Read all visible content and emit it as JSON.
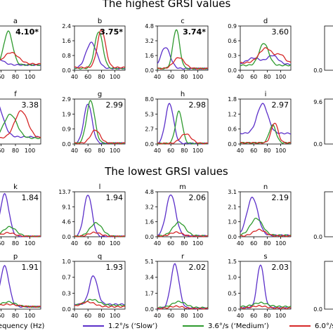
{
  "colors": {
    "slow": "#5b2fc9",
    "medium": "#2e9a2e",
    "fast": "#d62828"
  },
  "headings": {
    "top": "The highest GRSI values",
    "bottom": "The lowest GRSI values"
  },
  "xlabel": "Frequency (Hz)",
  "legend": [
    {
      "label": "1.2°/s (‘Slow’)",
      "color": "#5b2fc9"
    },
    {
      "label": "3.6°/s (‘Medium’)",
      "color": "#2e9a2e"
    },
    {
      "label": "6.0°/s",
      "color": "#d62828"
    }
  ],
  "chart_data": [
    {
      "id": "a",
      "type": "line",
      "grsi": "4.10*",
      "bold": true,
      "yticks": [],
      "xticks": [
        "60",
        "80",
        "100"
      ],
      "xlim": [
        45,
        115
      ],
      "ylim": [
        0,
        2.5
      ],
      "peaks": {
        "slow": [
          [
            50,
            0.8,
            10
          ]
        ],
        "medium": [
          [
            70,
            2.2,
            6
          ]
        ],
        "fast": [
          [
            74,
            1.0,
            10
          ]
        ]
      },
      "base": [
        0.3,
        0.3,
        0.35
      ]
    },
    {
      "id": "b",
      "type": "line",
      "grsi": "3.75*",
      "bold": true,
      "yticks": [
        "0.0",
        "0.8",
        "1.6",
        "2.4"
      ],
      "xticks": [
        "40",
        "60",
        "80",
        "100"
      ],
      "xlim": [
        40,
        115
      ],
      "ylim": [
        0,
        2.4
      ],
      "peaks": {
        "slow": [
          [
            65,
            1.5,
            8
          ]
        ],
        "medium": [
          [
            76,
            2.1,
            6
          ]
        ],
        "fast": [
          [
            80,
            2.2,
            6
          ]
        ]
      },
      "base": [
        0.1,
        0.1,
        0.15
      ]
    },
    {
      "id": "c",
      "type": "line",
      "grsi": "3.74*",
      "bold": true,
      "yticks": [
        "0.0",
        "1.6",
        "3.2",
        "4.8"
      ],
      "xticks": [
        "40",
        "60",
        "80",
        "100"
      ],
      "xlim": [
        40,
        115
      ],
      "ylim": [
        0,
        5.2
      ],
      "peaks": {
        "slow": [
          [
            52,
            2.7,
            7
          ]
        ],
        "medium": [
          [
            68,
            4.8,
            5
          ]
        ],
        "fast": [
          [
            72,
            1.5,
            8
          ]
        ]
      },
      "base": [
        0.2,
        0.2,
        0.2
      ]
    },
    {
      "id": "d",
      "type": "line",
      "grsi": "3.60",
      "bold": false,
      "yticks": [
        "0.0",
        "0.3",
        "0.6",
        "0.9"
      ],
      "xticks": [
        "40",
        "60",
        "80",
        "100"
      ],
      "xlim": [
        40,
        115
      ],
      "ylim": [
        0,
        0.9
      ],
      "peaks": {
        "slow": [
          [
            60,
            0.25,
            10
          ],
          [
            88,
            0.3,
            8
          ]
        ],
        "medium": [
          [
            75,
            0.55,
            7
          ]
        ],
        "fast": [
          [
            78,
            0.45,
            10
          ],
          [
            100,
            0.3,
            6
          ]
        ]
      },
      "base": [
        0.12,
        0.1,
        0.15
      ]
    },
    {
      "id": "f",
      "type": "line",
      "grsi": "3.38",
      "bold": false,
      "yticks": [],
      "xticks": [
        "60",
        "80",
        "100"
      ],
      "xlim": [
        45,
        115
      ],
      "ylim": [
        0,
        3.8
      ],
      "peaks": {
        "slow": [
          [
            53,
            3.6,
            9
          ]
        ],
        "medium": [
          [
            73,
            2.5,
            9
          ]
        ],
        "fast": [
          [
            88,
            2.8,
            9
          ]
        ]
      },
      "base": [
        0.6,
        0.5,
        0.5
      ]
    },
    {
      "id": "g",
      "type": "line",
      "grsi": "2.99",
      "bold": false,
      "yticks": [
        "0.0",
        "0.9",
        "1.9",
        "2.9"
      ],
      "xticks": [
        "40",
        "60",
        "80",
        "100"
      ],
      "xlim": [
        40,
        115
      ],
      "ylim": [
        0,
        2.9
      ],
      "peaks": {
        "slow": [
          [
            60,
            2.6,
            6
          ]
        ],
        "medium": [
          [
            64,
            2.8,
            6
          ]
        ],
        "fast": [
          [
            71,
            0.9,
            7
          ]
        ]
      },
      "base": [
        0.05,
        0.05,
        0.05
      ]
    },
    {
      "id": "h",
      "type": "line",
      "grsi": "2.98",
      "bold": false,
      "yticks": [
        "0.0",
        "2.7",
        "5.3",
        "8.0"
      ],
      "xticks": [
        "40",
        "60",
        "80",
        "100"
      ],
      "xlim": [
        40,
        115
      ],
      "ylim": [
        0,
        8.0
      ],
      "peaks": {
        "slow": [
          [
            58,
            7.2,
            6
          ]
        ],
        "medium": [
          [
            72,
            5.8,
            5
          ]
        ],
        "fast": [
          [
            82,
            1.8,
            8
          ]
        ]
      },
      "base": [
        0.1,
        0.1,
        0.1
      ]
    },
    {
      "id": "i",
      "type": "line",
      "grsi": "2.97",
      "bold": false,
      "yticks": [
        "0.0",
        "0.6",
        "1.2",
        "1.8"
      ],
      "xticks": [
        "40",
        "60",
        "80",
        "100"
      ],
      "xlim": [
        40,
        115
      ],
      "ylim": [
        0,
        1.9
      ],
      "peaks": {
        "slow": [
          [
            73,
            1.7,
            8
          ]
        ],
        "medium": [
          [
            88,
            0.8,
            5
          ]
        ],
        "fast": [
          [
            91,
            0.9,
            5
          ]
        ]
      },
      "base": [
        0.45,
        0.05,
        0.05
      ]
    },
    {
      "id": "k",
      "type": "line",
      "grsi": "1.84",
      "bold": false,
      "yticks": [],
      "xticks": [
        "60",
        "80",
        "100"
      ],
      "xlim": [
        45,
        115
      ],
      "ylim": [
        0,
        13.7
      ],
      "peaks": {
        "slow": [
          [
            65,
            13.0,
            6
          ]
        ],
        "medium": [
          [
            72,
            3.0,
            9
          ]
        ],
        "fast": [
          [
            70,
            1.2,
            9
          ]
        ]
      },
      "base": [
        0.1,
        0.1,
        0.1
      ]
    },
    {
      "id": "l",
      "type": "line",
      "grsi": "1.94",
      "bold": false,
      "yticks": [
        "0.0",
        "4.6",
        "9.1",
        "13.7"
      ],
      "xticks": [
        "40",
        "60",
        "80",
        "100"
      ],
      "xlim": [
        40,
        115
      ],
      "ylim": [
        0,
        13.7
      ],
      "peaks": {
        "slow": [
          [
            60,
            12.8,
            6
          ]
        ],
        "medium": [
          [
            72,
            4.2,
            9
          ]
        ],
        "fast": [
          [
            70,
            1.3,
            9
          ]
        ]
      },
      "base": [
        0.1,
        0.1,
        0.1
      ]
    },
    {
      "id": "m",
      "type": "line",
      "grsi": "2.06",
      "bold": false,
      "yticks": [
        "0.0",
        "1.6",
        "3.2",
        "4.8"
      ],
      "xticks": [
        "40",
        "60",
        "80",
        "100"
      ],
      "xlim": [
        40,
        115
      ],
      "ylim": [
        0,
        5.0
      ],
      "peaks": {
        "slow": [
          [
            60,
            4.7,
            7
          ]
        ],
        "medium": [
          [
            72,
            1.6,
            9
          ]
        ],
        "fast": [
          [
            68,
            0.5,
            9
          ]
        ]
      },
      "base": [
        0.1,
        0.1,
        0.05
      ]
    },
    {
      "id": "n",
      "type": "line",
      "grsi": "2.19",
      "bold": false,
      "yticks": [
        "0.0",
        "1.0",
        "2.1",
        "3.1"
      ],
      "xticks": [
        "40",
        "60",
        "80",
        "100"
      ],
      "xlim": [
        40,
        115
      ],
      "ylim": [
        0,
        3.2
      ],
      "peaks": {
        "slow": [
          [
            58,
            2.8,
            8
          ]
        ],
        "medium": [
          [
            64,
            1.3,
            9
          ]
        ],
        "fast": [
          [
            68,
            0.5,
            9
          ]
        ]
      },
      "base": [
        0.1,
        0.1,
        0.05
      ]
    },
    {
      "id": "p",
      "type": "line",
      "grsi": "1.91",
      "bold": false,
      "yticks": [],
      "xticks": [
        "60",
        "80",
        "100"
      ],
      "xlim": [
        45,
        115
      ],
      "ylim": [
        0,
        1.0
      ],
      "peaks": {
        "slow": [
          [
            65,
            0.9,
            6
          ]
        ],
        "medium": [
          [
            70,
            0.15,
            10
          ]
        ],
        "fast": [
          [
            70,
            0.1,
            12
          ]
        ]
      },
      "base": [
        0.05,
        0.05,
        0.05
      ]
    },
    {
      "id": "q",
      "type": "line",
      "grsi": "1.93",
      "bold": false,
      "yticks": [
        "0.0",
        "0.3",
        "0.7",
        "1.0"
      ],
      "xticks": [
        "40",
        "60",
        "80",
        "100"
      ],
      "xlim": [
        40,
        115
      ],
      "ylim": [
        0,
        1.0
      ],
      "peaks": {
        "slow": [
          [
            68,
            0.7,
            6
          ]
        ],
        "medium": [
          [
            66,
            0.2,
            10
          ]
        ],
        "fast": [
          [
            60,
            0.15,
            10
          ]
        ]
      },
      "base": [
        0.1,
        0.08,
        0.05
      ]
    },
    {
      "id": "r",
      "type": "line",
      "grsi": "2.02",
      "bold": false,
      "yticks": [
        "0.0",
        "1.7",
        "3.4",
        "5.1"
      ],
      "xticks": [
        "40",
        "60",
        "80",
        "100"
      ],
      "xlim": [
        40,
        115
      ],
      "ylim": [
        0,
        5.1
      ],
      "peaks": {
        "slow": [
          [
            66,
            4.8,
            6
          ]
        ],
        "medium": [
          [
            72,
            0.8,
            10
          ]
        ],
        "fast": [
          [
            68,
            0.3,
            10
          ]
        ]
      },
      "base": [
        0.1,
        0.15,
        0.05
      ]
    },
    {
      "id": "s",
      "type": "line",
      "grsi": "2.03",
      "bold": false,
      "yticks": [
        "0.0",
        "0.5",
        "1.0",
        "1.5"
      ],
      "xticks": [
        "40",
        "60",
        "80",
        "100"
      ],
      "xlim": [
        40,
        115
      ],
      "ylim": [
        0,
        1.5
      ],
      "peaks": {
        "slow": [
          [
            70,
            1.4,
            5
          ]
        ],
        "medium": [
          [
            70,
            0.2,
            10
          ]
        ],
        "fast": [
          [
            68,
            0.1,
            10
          ]
        ]
      },
      "base": [
        0.05,
        0.08,
        0.03
      ]
    }
  ],
  "edge_labels": [
    {
      "row": 0,
      "ticks": [
        "0.0"
      ]
    },
    {
      "row": 1,
      "ticks": [
        "9.6",
        "0.0"
      ]
    },
    {
      "row": 2,
      "ticks": [
        "0.0"
      ]
    },
    {
      "row": 3,
      "ticks": [
        "0.0"
      ]
    }
  ]
}
